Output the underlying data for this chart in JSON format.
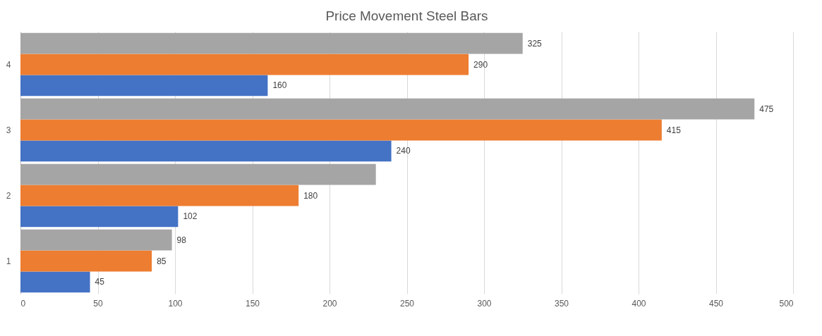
{
  "chart_data": {
    "type": "bar",
    "orientation": "horizontal",
    "title": "Price Movement Steel Bars",
    "categories": [
      "4",
      "3",
      "2",
      "1"
    ],
    "series": [
      {
        "color": "#4472c4",
        "values": [
          160,
          240,
          102,
          45
        ],
        "value_labels": [
          "160",
          "240",
          "102",
          "45"
        ]
      },
      {
        "color": "#ed7d31",
        "values": [
          290,
          415,
          180,
          85
        ],
        "value_labels": [
          "290",
          "415",
          "180",
          "85"
        ]
      },
      {
        "color": "#a5a5a5",
        "values": [
          325,
          475,
          230,
          98
        ],
        "value_labels": [
          "325",
          "475",
          null,
          "98"
        ]
      }
    ],
    "xlim": [
      0,
      500
    ],
    "xticks": [
      0,
      50,
      100,
      150,
      200,
      250,
      300,
      350,
      400,
      450,
      500
    ],
    "grid": "x",
    "legend": false
  }
}
